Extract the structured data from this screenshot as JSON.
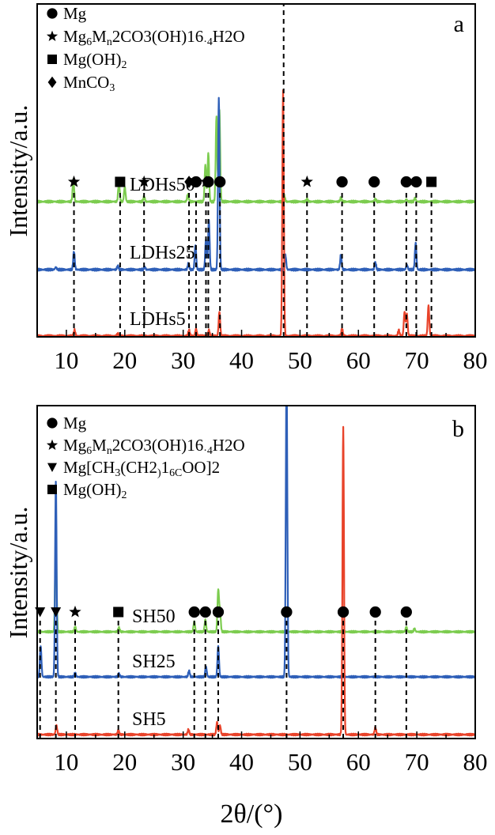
{
  "x_axis_label": "2θ/(°)",
  "chart_data": [
    {
      "type": "line",
      "panel_label": "a",
      "ylabel": "Intensity/a.u.",
      "xlim": [
        5,
        80
      ],
      "xticks": [
        10,
        20,
        30,
        40,
        50,
        60,
        70,
        80
      ],
      "legend_position": "top-left",
      "legend": [
        {
          "marker": "circle",
          "main": "Mg",
          "subs": []
        },
        {
          "marker": "star",
          "main": "Mg6Mn2CO3(OH)16·4H2O",
          "subs": [
            [
              2,
              3
            ],
            [
              4,
              5
            ],
            [
              15,
              17
            ],
            [
              20,
              21
            ]
          ]
        },
        {
          "marker": "square",
          "main": "Mg(OH)2",
          "subs": [
            [
              6,
              7
            ]
          ]
        },
        {
          "marker": "diamond",
          "main": "MnCO3",
          "subs": [
            [
              4,
              5
            ]
          ]
        }
      ],
      "series": [
        {
          "name": "LDHs50",
          "color": "#7ccc4f",
          "baseline": 0.7,
          "peaks": [
            [
              11.2,
              0.18
            ],
            [
              19,
              0.16
            ],
            [
              20,
              0.12
            ],
            [
              23.3,
              0.04
            ],
            [
              30.8,
              0.06
            ],
            [
              33.8,
              0.3
            ],
            [
              34.3,
              0.4
            ],
            [
              35.7,
              0.7
            ],
            [
              36.2,
              0.75
            ],
            [
              47.3,
              0.05
            ],
            [
              51.2,
              0.02
            ],
            [
              57,
              0.03
            ],
            [
              62.9,
              0.02
            ],
            [
              68.2,
              0.02
            ],
            [
              69.7,
              0.03
            ]
          ]
        },
        {
          "name": "LDHs25",
          "color": "#2e5fb8",
          "baseline": 0.35,
          "peaks": [
            [
              8.2,
              0.02
            ],
            [
              11.3,
              0.15
            ],
            [
              18.8,
              0.03
            ],
            [
              23.4,
              0.02
            ],
            [
              30.9,
              0.05
            ],
            [
              32.1,
              0.2
            ],
            [
              33.9,
              0.25
            ],
            [
              34.4,
              0.4
            ],
            [
              36.1,
              1.4
            ],
            [
              47.5,
              0.12
            ],
            [
              57,
              0.12
            ],
            [
              62.9,
              0.06
            ],
            [
              68.3,
              0.04
            ],
            [
              69.8,
              0.22
            ]
          ]
        },
        {
          "name": "LDHs5",
          "color": "#e8432a",
          "baseline": 0.0,
          "peaks": [
            [
              11.4,
              0.05
            ],
            [
              18.8,
              0.02
            ],
            [
              31,
              0.05
            ],
            [
              32.2,
              0.06
            ],
            [
              34.4,
              0.05
            ],
            [
              36.2,
              0.2
            ],
            [
              47.1,
              2.0
            ],
            [
              57.2,
              0.06
            ],
            [
              66.9,
              0.05
            ],
            [
              67.9,
              0.2
            ],
            [
              68.3,
              0.18
            ],
            [
              72,
              0.25
            ]
          ]
        }
      ],
      "guide_lines": [
        {
          "x": 11.3,
          "marker": "star"
        },
        {
          "x": 19.2,
          "marker": "square"
        },
        {
          "x": 23.3,
          "marker": "star"
        },
        {
          "x": 31.0,
          "marker": "diamond"
        },
        {
          "x": 32.2,
          "marker": "circle"
        },
        {
          "x": 33.9,
          "marker": "star"
        },
        {
          "x": 34.3,
          "marker": "circle"
        },
        {
          "x": 36.3,
          "marker": "circle"
        },
        {
          "x": 47.2,
          "marker": "none"
        },
        {
          "x": 51.2,
          "marker": "star"
        },
        {
          "x": 57.2,
          "marker": "circle"
        },
        {
          "x": 62.7,
          "marker": "circle"
        },
        {
          "x": 68.2,
          "marker": "circle"
        },
        {
          "x": 69.9,
          "marker": "circle"
        },
        {
          "x": 72.5,
          "marker": "square"
        }
      ]
    },
    {
      "type": "line",
      "panel_label": "b",
      "ylabel": "Intensity/a.u.",
      "xlim": [
        5,
        80
      ],
      "xticks": [
        10,
        20,
        30,
        40,
        50,
        60,
        70,
        80
      ],
      "legend_position": "top-left",
      "legend": [
        {
          "marker": "circle",
          "main": "Mg",
          "subs": []
        },
        {
          "marker": "star",
          "main": "Mg6Mn2CO3(OH)16·4H2O",
          "subs": [
            [
              2,
              3
            ],
            [
              4,
              5
            ],
            [
              15,
              17
            ],
            [
              20,
              21
            ]
          ]
        },
        {
          "marker": "triangle",
          "main": "Mg[CH3(CH2)16COO]2",
          "subs": [
            [
              5,
              6
            ],
            [
              10,
              11
            ],
            [
              12,
              14
            ],
            [
              18,
              19
            ]
          ]
        },
        {
          "marker": "square",
          "main": "Mg(OH)2",
          "subs": [
            [
              6,
              7
            ]
          ]
        }
      ],
      "series": [
        {
          "name": "SH50",
          "color": "#7ccc4f",
          "baseline": 0.75,
          "peaks": [
            [
              8.2,
              0.9
            ],
            [
              11.5,
              0.05
            ],
            [
              19,
              0.04
            ],
            [
              31.9,
              0.1
            ],
            [
              33.8,
              0.12
            ],
            [
              36,
              0.4
            ],
            [
              36.3,
              0.2
            ],
            [
              68.2,
              0.05
            ],
            [
              69.6,
              0.03
            ]
          ]
        },
        {
          "name": "SH25",
          "color": "#2e5fb8",
          "baseline": 0.35,
          "peaks": [
            [
              5.6,
              0.3
            ],
            [
              8.2,
              1.9
            ],
            [
              11.5,
              0.04
            ],
            [
              19,
              0.03
            ],
            [
              31,
              0.06
            ],
            [
              33.9,
              0.1
            ],
            [
              36,
              0.3
            ],
            [
              47.7,
              3.0
            ]
          ]
        },
        {
          "name": "SH5",
          "color": "#e8432a",
          "baseline": 0.0,
          "peaks": [
            [
              8.3,
              0.09
            ],
            [
              18.9,
              0.04
            ],
            [
              30.9,
              0.05
            ],
            [
              35.8,
              0.12
            ],
            [
              36.3,
              0.09
            ],
            [
              57.4,
              3.0
            ],
            [
              62.9,
              0.07
            ]
          ]
        }
      ],
      "guide_lines": [
        {
          "x": 5.5,
          "marker": "triangle"
        },
        {
          "x": 8.2,
          "marker": "triangle"
        },
        {
          "x": 11.5,
          "marker": "star"
        },
        {
          "x": 18.9,
          "marker": "square"
        },
        {
          "x": 31.9,
          "marker": "circle"
        },
        {
          "x": 33.8,
          "marker": "circle"
        },
        {
          "x": 36.0,
          "marker": "circle"
        },
        {
          "x": 47.7,
          "marker": "circle"
        },
        {
          "x": 57.4,
          "marker": "circle"
        },
        {
          "x": 62.9,
          "marker": "circle"
        },
        {
          "x": 68.2,
          "marker": "circle"
        }
      ]
    }
  ]
}
